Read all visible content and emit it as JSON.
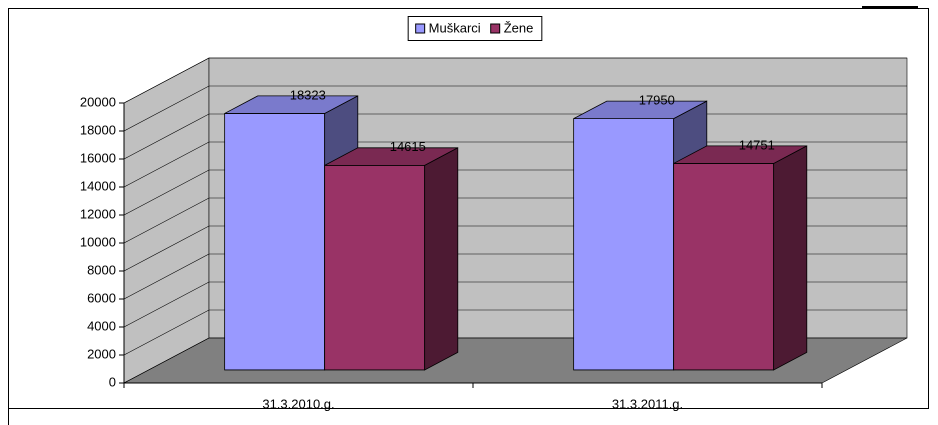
{
  "chart_data": {
    "type": "bar3d",
    "categories": [
      "31.3.2010.g.",
      "31.3.2011.g."
    ],
    "series": [
      {
        "name": "Muškarci",
        "color": "#9999ff",
        "values": [
          18323,
          17950
        ]
      },
      {
        "name": "Žene",
        "color": "#993366",
        "values": [
          14615,
          14751
        ]
      }
    ],
    "ylim": [
      0,
      20000
    ],
    "yticks": [
      0,
      2000,
      4000,
      6000,
      8000,
      10000,
      12000,
      14000,
      16000,
      18000,
      20000
    ],
    "grid": true,
    "legend": "top"
  }
}
